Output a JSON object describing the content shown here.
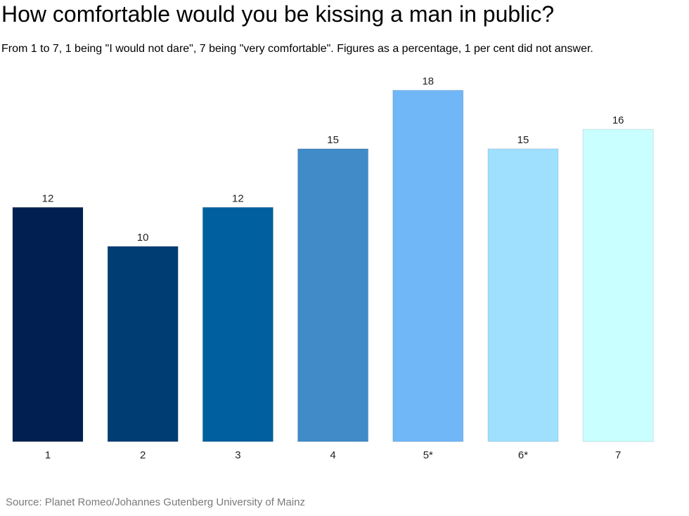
{
  "chart_data": {
    "type": "bar",
    "title": "How comfortable would you be kissing a man in public?",
    "subtitle": "From 1 to 7, 1 being \"I would not dare\", 7 being \"very comfortable\". Figures as a percentage, 1 per cent did not answer.",
    "categories": [
      "1",
      "2",
      "3",
      "4",
      "5*",
      "6*",
      "7"
    ],
    "values": [
      12,
      10,
      12,
      15,
      18,
      15,
      16
    ],
    "colors": [
      "#012051",
      "#003d73",
      "#00609f",
      "#418bc9",
      "#70b7f7",
      "#a0e0ff",
      "#c9ffff"
    ],
    "ylim": [
      0,
      18
    ],
    "grid": false,
    "xlabel": "",
    "ylabel": "",
    "source": "Source: Planet Romeo/Johannes Gutenberg University of Mainz"
  }
}
